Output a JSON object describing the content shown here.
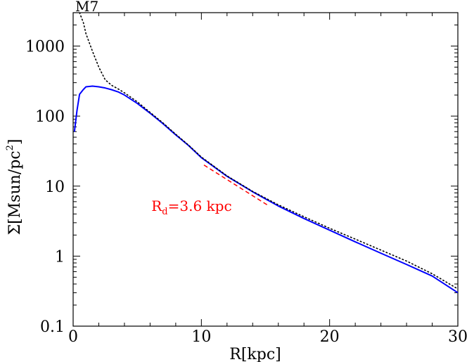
{
  "chart_data": {
    "type": "line",
    "panel_label": "M7",
    "title": "",
    "xlabel": "R[kpc]",
    "ylabel": {
      "prefix": "Σ[Msun/pc",
      "exponent": "2",
      "suffix": "]"
    },
    "xlim": [
      0,
      30
    ],
    "ylim": [
      0.1,
      3000
    ],
    "yscale": "log",
    "x_ticks": [
      {
        "value": 0,
        "label": "0"
      },
      {
        "value": 10,
        "label": "10"
      },
      {
        "value": 20,
        "label": "20"
      },
      {
        "value": 30,
        "label": "30"
      }
    ],
    "y_ticks": [
      {
        "value": 0.1,
        "label": "0.1"
      },
      {
        "value": 1,
        "label": "1"
      },
      {
        "value": 10,
        "label": "10"
      },
      {
        "value": 100,
        "label": "100"
      },
      {
        "value": 1000,
        "label": "1000"
      }
    ],
    "grid": false,
    "legend": "none",
    "series": [
      {
        "name": "",
        "style": "solid",
        "color": "#0000ff",
        "points": [
          [
            0.1,
            60
          ],
          [
            0.3,
            120
          ],
          [
            0.5,
            205
          ],
          [
            0.8,
            240
          ],
          [
            1.0,
            262
          ],
          [
            1.5,
            268
          ],
          [
            2.0,
            262
          ],
          [
            2.5,
            252
          ],
          [
            3.0,
            238
          ],
          [
            3.5,
            222
          ],
          [
            4.0,
            200
          ],
          [
            5.0,
            152
          ],
          [
            6.0,
            110
          ],
          [
            7.0,
            78
          ],
          [
            8.0,
            54
          ],
          [
            9.0,
            38
          ],
          [
            10.0,
            25.5
          ],
          [
            12.0,
            13.8
          ],
          [
            14.0,
            8.3
          ],
          [
            16.0,
            5.2
          ],
          [
            18.0,
            3.45
          ],
          [
            20.0,
            2.35
          ],
          [
            22.0,
            1.6
          ],
          [
            24.0,
            1.1
          ],
          [
            26.0,
            0.76
          ],
          [
            28.0,
            0.52
          ],
          [
            30.0,
            0.3
          ]
        ]
      },
      {
        "name": "",
        "style": "dotted",
        "color": "#000000",
        "points": [
          [
            0.5,
            3000
          ],
          [
            0.8,
            2150
          ],
          [
            1.0,
            1500
          ],
          [
            1.5,
            850
          ],
          [
            2.0,
            500
          ],
          [
            2.5,
            330
          ],
          [
            3.0,
            275
          ],
          [
            3.5,
            245
          ],
          [
            4.0,
            215
          ],
          [
            5.0,
            160
          ],
          [
            6.0,
            113
          ],
          [
            7.0,
            80
          ],
          [
            8.0,
            55
          ],
          [
            9.0,
            38.5
          ],
          [
            10.0,
            26
          ],
          [
            12.0,
            14
          ],
          [
            14.0,
            8.4
          ],
          [
            16.0,
            5.4
          ],
          [
            18.0,
            3.65
          ],
          [
            20.0,
            2.5
          ],
          [
            22.0,
            1.75
          ],
          [
            24.0,
            1.22
          ],
          [
            26.0,
            0.85
          ],
          [
            28.0,
            0.56
          ],
          [
            30.0,
            0.34
          ]
        ]
      },
      {
        "name": "",
        "style": "dashed",
        "color": "#ff0000",
        "points": [
          [
            10.2,
            20
          ],
          [
            15.2,
            5.3
          ]
        ]
      }
    ],
    "annotations": [
      {
        "base": "R",
        "subscript": "d",
        "text": "=3.6 kpc",
        "color": "#ff0000",
        "x": 6.1,
        "y": 5.2
      }
    ]
  }
}
